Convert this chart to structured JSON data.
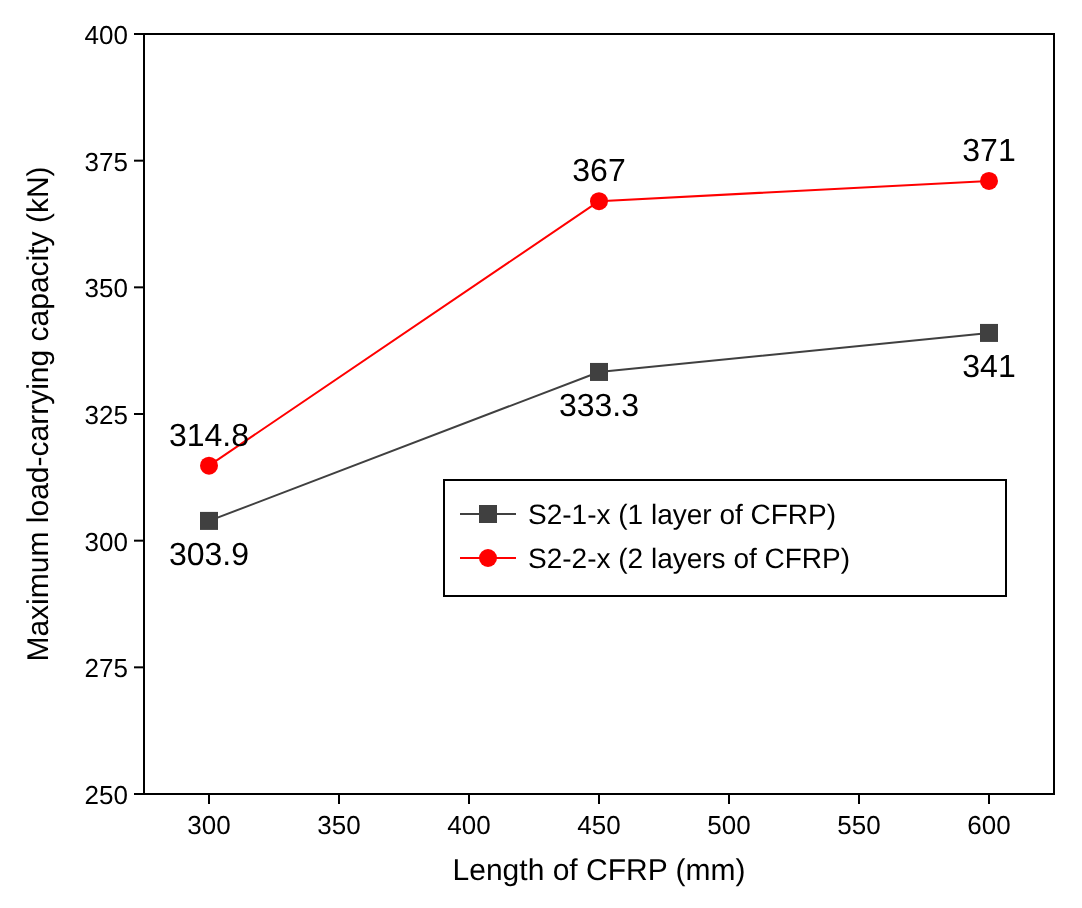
{
  "chart_data": {
    "type": "line",
    "xlabel": "Length of CFRP (mm)",
    "ylabel": "Maximum load-carrying capacity (kN)",
    "x": [
      300,
      450,
      600
    ],
    "series": [
      {
        "name": "S2-1-x (1 layer of CFRP)",
        "color": "#404040",
        "values": [
          303.9,
          333.3,
          341
        ],
        "marker": "square"
      },
      {
        "name": "S2-2-x (2 layers of CFRP)",
        "color": "#ff0000",
        "values": [
          314.8,
          367,
          371
        ],
        "marker": "circle"
      }
    ],
    "xlim": [
      275,
      625
    ],
    "xticks": [
      300,
      350,
      400,
      450,
      500,
      550,
      600
    ],
    "ylim": [
      250,
      400
    ],
    "yticks": [
      250,
      275,
      300,
      325,
      350,
      375,
      400
    ],
    "data_labels": true,
    "legend": "right",
    "grid": false,
    "line_style": "solid"
  }
}
